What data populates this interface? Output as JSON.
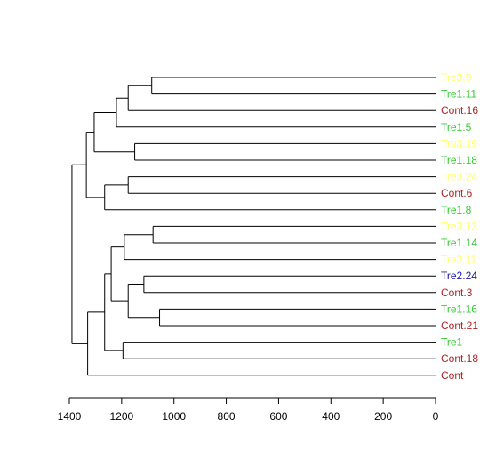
{
  "chart_data": {
    "type": "dendrogram",
    "orientation": "horizontal",
    "x_axis": {
      "reversed": true,
      "range": [
        1400,
        0
      ],
      "ticks": [
        1400,
        1200,
        1000,
        800,
        600,
        400,
        200,
        0
      ]
    },
    "colors": {
      "Tre3": "#ffff66",
      "Tre1": "#33cc33",
      "Cont": "#b22222",
      "Tre2": "#1a1aa6"
    },
    "leaves": [
      {
        "label": "Tre3.9",
        "group": "Tre3"
      },
      {
        "label": "Tre1.11",
        "group": "Tre1"
      },
      {
        "label": "Cont.16",
        "group": "Cont"
      },
      {
        "label": "Tre1.5",
        "group": "Tre1"
      },
      {
        "label": "Tre3.19",
        "group": "Tre3"
      },
      {
        "label": "Tre1.18",
        "group": "Tre1"
      },
      {
        "label": "Tre3.24",
        "group": "Tre3"
      },
      {
        "label": "Cont.6",
        "group": "Cont"
      },
      {
        "label": "Tre1.8",
        "group": "Tre1"
      },
      {
        "label": "Tre3.13",
        "group": "Tre3"
      },
      {
        "label": "Tre1.14",
        "group": "Tre1"
      },
      {
        "label": "Tre3.11",
        "group": "Tre3"
      },
      {
        "label": "Tre2.24",
        "group": "Tre2"
      },
      {
        "label": "Cont.3",
        "group": "Cont"
      },
      {
        "label": "Tre1.16",
        "group": "Tre1"
      },
      {
        "label": "Cont.21",
        "group": "Cont"
      },
      {
        "label": "Tre1",
        "group": "Tre1"
      },
      {
        "label": "Cont.18",
        "group": "Cont"
      },
      {
        "label": "Cont",
        "group": "Cont"
      }
    ],
    "merges": [
      {
        "a": 0,
        "b": 1,
        "height": 1085
      },
      {
        "a": 100,
        "b": 2,
        "height": 1175
      },
      {
        "a": 101,
        "b": 3,
        "height": 1220
      },
      {
        "a": 4,
        "b": 5,
        "height": 1150
      },
      {
        "a": 102,
        "b": 103,
        "height": 1305
      },
      {
        "a": 6,
        "b": 7,
        "height": 1175
      },
      {
        "a": 105,
        "b": 8,
        "height": 1265
      },
      {
        "a": 104,
        "b": 106,
        "height": 1335
      },
      {
        "a": 9,
        "b": 10,
        "height": 1080
      },
      {
        "a": 108,
        "b": 11,
        "height": 1190
      },
      {
        "a": 12,
        "b": 13,
        "height": 1115
      },
      {
        "a": 14,
        "b": 15,
        "height": 1055
      },
      {
        "a": 110,
        "b": 111,
        "height": 1175
      },
      {
        "a": 109,
        "b": 112,
        "height": 1240
      },
      {
        "a": 16,
        "b": 17,
        "height": 1195
      },
      {
        "a": 113,
        "b": 114,
        "height": 1265
      },
      {
        "a": 115,
        "b": 18,
        "height": 1330
      },
      {
        "a": 107,
        "b": 116,
        "height": 1390
      }
    ]
  }
}
